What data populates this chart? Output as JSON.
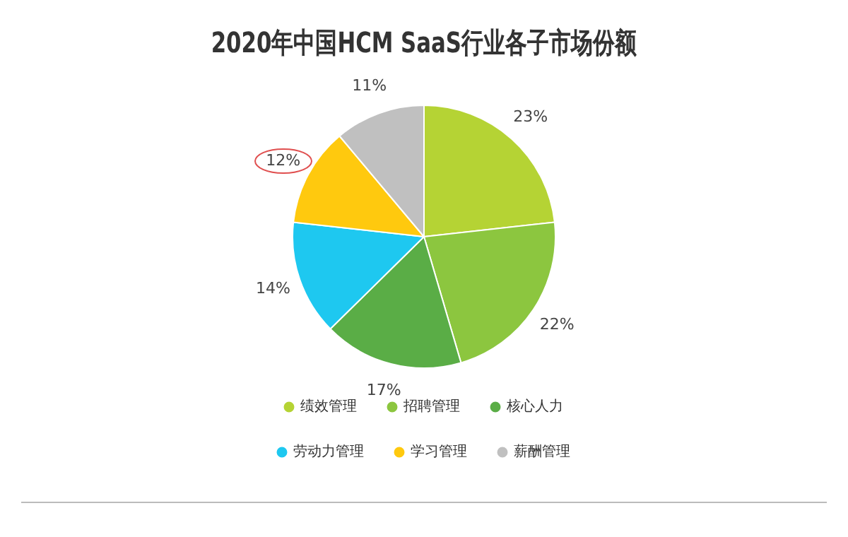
{
  "chart_data": {
    "type": "pie",
    "title": "2020年中国HCM SaaS行业各子市场份额",
    "categories": [
      "绩效管理",
      "招聘管理",
      "核心人力",
      "劳动力管理",
      "学习管理",
      "薪酬管理"
    ],
    "values": [
      23,
      22,
      17,
      14,
      12,
      11
    ],
    "value_labels": [
      "23%",
      "22%",
      "17%",
      "14%",
      "12%",
      "11%"
    ],
    "colors": [
      "#b5d334",
      "#8cc63f",
      "#5aad46",
      "#1ec8f0",
      "#ffc90e",
      "#c0c0c0"
    ],
    "legend": "bottom"
  }
}
